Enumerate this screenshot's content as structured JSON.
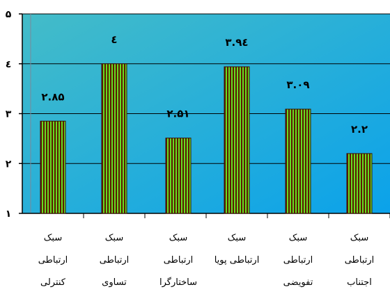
{
  "chart_data": {
    "type": "bar",
    "categories": [
      [
        "سبک",
        "ارتباطی",
        "کنترلی"
      ],
      [
        "سبک",
        "ارتباطی",
        "تساوی"
      ],
      [
        "سبک",
        "ارتباطی",
        "ساختارگرا"
      ],
      [
        "سبک",
        "ارتباطی پویا"
      ],
      [
        "سبک",
        "ارتباطی",
        "تفویضی"
      ],
      [
        "سبک",
        "ارتباطی",
        "اجتناب"
      ]
    ],
    "values": [
      2.85,
      4,
      2.51,
      3.94,
      3.09,
      2.2
    ],
    "data_labels": [
      "۲.۸۵",
      "٤",
      "۲.۵۱",
      "۳.۹٤",
      "۳.۰۹",
      "۲.۲"
    ],
    "yticks": [
      1,
      2,
      3,
      4,
      5
    ],
    "ytick_labels": [
      "۱",
      "۲",
      "۳",
      "٤",
      "۵"
    ],
    "ylim": [
      1,
      5
    ],
    "grid": true,
    "colors": {
      "bar_light": "#66dd22",
      "bar_dark": "#5a1a00",
      "plot_gradient": [
        "#3fb8c8",
        "#0aa0e8"
      ],
      "gridline": "#000000"
    }
  }
}
